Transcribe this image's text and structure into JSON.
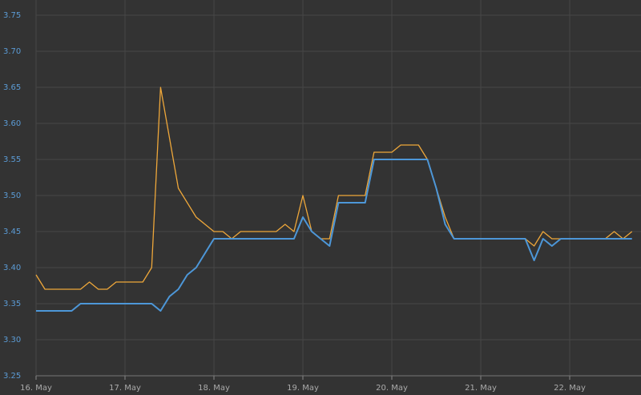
{
  "chart_data": {
    "type": "line",
    "x": [
      16.0,
      16.1,
      16.2,
      16.3,
      16.4,
      16.5,
      16.6,
      16.7,
      16.8,
      16.9,
      17.0,
      17.1,
      17.2,
      17.3,
      17.4,
      17.5,
      17.6,
      17.7,
      17.8,
      17.9,
      18.0,
      18.1,
      18.2,
      18.3,
      18.4,
      18.5,
      18.6,
      18.7,
      18.8,
      18.9,
      19.0,
      19.1,
      19.2,
      19.3,
      19.4,
      19.5,
      19.6,
      19.7,
      19.8,
      19.9,
      20.0,
      20.1,
      20.2,
      20.3,
      20.4,
      20.5,
      20.6,
      20.7,
      20.8,
      20.9,
      21.0,
      21.1,
      21.2,
      21.3,
      21.4,
      21.5,
      21.6,
      21.7,
      21.8,
      21.9,
      22.0,
      22.1,
      22.2,
      22.3,
      22.4,
      22.5,
      22.6,
      22.7
    ],
    "series": [
      {
        "color": "#eea73a",
        "values": [
          3.39,
          3.37,
          3.37,
          3.37,
          3.37,
          3.37,
          3.38,
          3.37,
          3.37,
          3.38,
          3.38,
          3.38,
          3.38,
          3.4,
          3.65,
          3.58,
          3.51,
          3.49,
          3.47,
          3.46,
          3.45,
          3.45,
          3.44,
          3.45,
          3.45,
          3.45,
          3.45,
          3.45,
          3.46,
          3.45,
          3.5,
          3.45,
          3.44,
          3.44,
          3.5,
          3.5,
          3.5,
          3.5,
          3.56,
          3.56,
          3.56,
          3.57,
          3.57,
          3.57,
          3.55,
          3.51,
          3.47,
          3.44,
          3.44,
          3.44,
          3.44,
          3.44,
          3.44,
          3.44,
          3.44,
          3.44,
          3.43,
          3.45,
          3.44,
          3.44,
          3.44,
          3.44,
          3.44,
          3.44,
          3.44,
          3.45,
          3.44,
          3.45
        ]
      },
      {
        "color": "#4d97d8",
        "values": [
          3.34,
          3.34,
          3.34,
          3.34,
          3.34,
          3.35,
          3.35,
          3.35,
          3.35,
          3.35,
          3.35,
          3.35,
          3.35,
          3.35,
          3.34,
          3.36,
          3.37,
          3.39,
          3.4,
          3.42,
          3.44,
          3.44,
          3.44,
          3.44,
          3.44,
          3.44,
          3.44,
          3.44,
          3.44,
          3.44,
          3.47,
          3.45,
          3.44,
          3.43,
          3.49,
          3.49,
          3.49,
          3.49,
          3.55,
          3.55,
          3.55,
          3.55,
          3.55,
          3.55,
          3.55,
          3.51,
          3.46,
          3.44,
          3.44,
          3.44,
          3.44,
          3.44,
          3.44,
          3.44,
          3.44,
          3.44,
          3.41,
          3.44,
          3.43,
          3.44,
          3.44,
          3.44,
          3.44,
          3.44,
          3.44,
          3.44,
          3.44,
          3.44
        ]
      }
    ],
    "xlim": [
      16,
      22.78
    ],
    "xticks": [
      {
        "value": 16,
        "label": "16. May"
      },
      {
        "value": 17,
        "label": "17. May"
      },
      {
        "value": 18,
        "label": "18. May"
      },
      {
        "value": 19,
        "label": "19. May"
      },
      {
        "value": 20,
        "label": "20. May"
      },
      {
        "value": 21,
        "label": "21. May"
      },
      {
        "value": 22,
        "label": "22. May"
      }
    ],
    "ylim": [
      3.25,
      3.75
    ],
    "yticks": [
      3.25,
      {
        "value": 3.3,
        "label": "3.30"
      },
      3.35,
      {
        "value": 3.4,
        "label": "3.40"
      },
      3.45,
      {
        "value": 3.5,
        "label": "3.50"
      },
      3.55,
      {
        "value": 3.6,
        "label": "3.60"
      },
      3.65,
      {
        "value": 3.7,
        "label": "3.70"
      },
      3.75
    ],
    "grid": true
  }
}
